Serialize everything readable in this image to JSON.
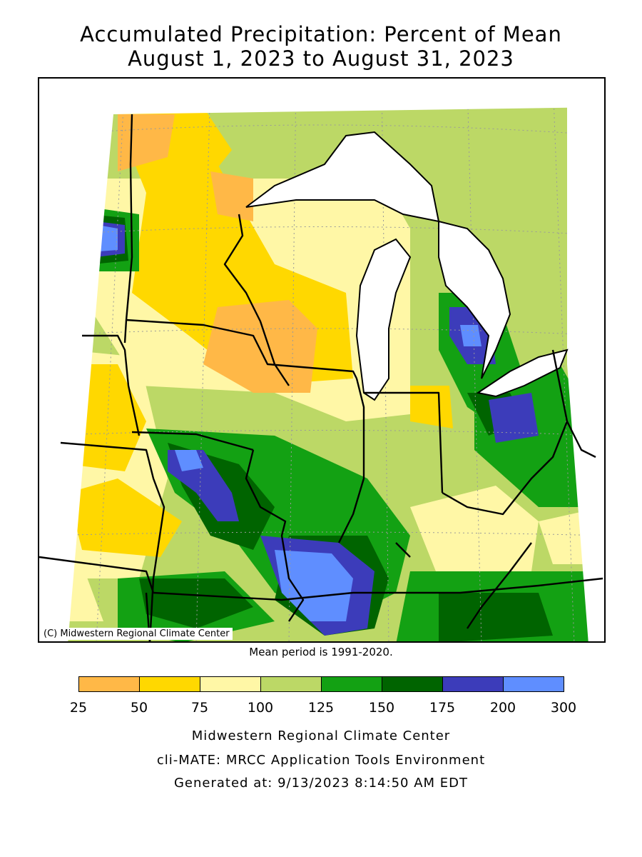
{
  "title_line1": "Accumulated Precipitation: Percent of Mean",
  "title_line2": "August 1, 2023 to August 31, 2023",
  "copyright": "(C) Midwestern Regional Climate Center",
  "mean_period": "Mean period is 1991-2020.",
  "legend": {
    "bins": [
      {
        "from": 25,
        "to": 50,
        "color": "#ffb847"
      },
      {
        "from": 50,
        "to": 75,
        "color": "#ffd800"
      },
      {
        "from": 75,
        "to": 100,
        "color": "#fff7a6"
      },
      {
        "from": 100,
        "to": 125,
        "color": "#bcd866"
      },
      {
        "from": 125,
        "to": 150,
        "color": "#13a113"
      },
      {
        "from": 150,
        "to": 175,
        "color": "#006400"
      },
      {
        "from": 175,
        "to": 200,
        "color": "#3c3cba"
      },
      {
        "from": 200,
        "to": 300,
        "color": "#5f8eff"
      }
    ],
    "ticks": [
      "25",
      "50",
      "75",
      "100",
      "125",
      "150",
      "175",
      "200",
      "300"
    ]
  },
  "footer": {
    "line1": "Midwestern Regional Climate Center",
    "line2": "cli-MATE: MRCC Application Tools Environment",
    "line3": "Generated at: 9/13/2023 8:14:50 AM EDT"
  }
}
